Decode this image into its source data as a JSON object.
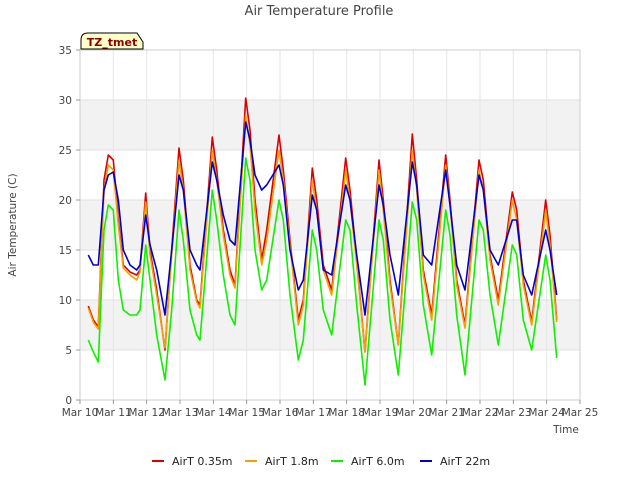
{
  "chart_data": {
    "type": "line",
    "title": "Air Temperature Profile",
    "xlabel": "Time",
    "ylabel": "Air Temperature (C)",
    "badge": "TZ_tmet",
    "ylim": [
      0,
      35
    ],
    "xlim": [
      10,
      25
    ],
    "yticks": [
      0,
      5,
      10,
      15,
      20,
      25,
      30,
      35
    ],
    "xticks": [
      {
        "v": 10,
        "label": "Mar 10"
      },
      {
        "v": 11,
        "label": "Mar 11"
      },
      {
        "v": 12,
        "label": "Mar 12"
      },
      {
        "v": 13,
        "label": "Mar 13"
      },
      {
        "v": 14,
        "label": "Mar 14"
      },
      {
        "v": 15,
        "label": "Mar 15"
      },
      {
        "v": 16,
        "label": "Mar 16"
      },
      {
        "v": 17,
        "label": "Mar 17"
      },
      {
        "v": 18,
        "label": "Mar 18"
      },
      {
        "v": 19,
        "label": "Mar 19"
      },
      {
        "v": 20,
        "label": "Mar 20"
      },
      {
        "v": 21,
        "label": "Mar 21"
      },
      {
        "v": 22,
        "label": "Mar 22"
      },
      {
        "v": 23,
        "label": "Mar 23"
      },
      {
        "v": 24,
        "label": "Mar 24"
      },
      {
        "v": 25,
        "label": "Mar 25"
      }
    ],
    "grid": "horizontal bands",
    "legend_position": "bottom",
    "x_units": "day of March",
    "series": [
      {
        "name": "AirT 0.35m",
        "color": "#dd0000",
        "points": [
          [
            10.25,
            9.4
          ],
          [
            10.4,
            8.0
          ],
          [
            10.55,
            7.3
          ],
          [
            10.72,
            22.0
          ],
          [
            10.85,
            24.5
          ],
          [
            11.0,
            24.0
          ],
          [
            11.15,
            18.0
          ],
          [
            11.3,
            13.5
          ],
          [
            11.5,
            12.8
          ],
          [
            11.7,
            12.5
          ],
          [
            11.8,
            13.0
          ],
          [
            11.97,
            20.7
          ],
          [
            12.1,
            15.0
          ],
          [
            12.3,
            11.0
          ],
          [
            12.55,
            5.0
          ],
          [
            12.75,
            15.0
          ],
          [
            12.97,
            25.2
          ],
          [
            13.1,
            22.0
          ],
          [
            13.3,
            13.5
          ],
          [
            13.5,
            10.0
          ],
          [
            13.6,
            9.5
          ],
          [
            13.97,
            26.3
          ],
          [
            14.1,
            23.0
          ],
          [
            14.3,
            17.0
          ],
          [
            14.5,
            13.0
          ],
          [
            14.65,
            11.5
          ],
          [
            14.97,
            30.2
          ],
          [
            15.1,
            27.0
          ],
          [
            15.25,
            20.0
          ],
          [
            15.45,
            14.0
          ],
          [
            15.6,
            17.0
          ],
          [
            15.97,
            26.5
          ],
          [
            16.1,
            23.0
          ],
          [
            16.3,
            16.0
          ],
          [
            16.55,
            8.0
          ],
          [
            16.7,
            10.0
          ],
          [
            16.97,
            23.2
          ],
          [
            17.1,
            20.0
          ],
          [
            17.3,
            13.5
          ],
          [
            17.55,
            11.0
          ],
          [
            17.97,
            24.2
          ],
          [
            18.1,
            21.0
          ],
          [
            18.3,
            14.0
          ],
          [
            18.55,
            4.8
          ],
          [
            18.97,
            24.0
          ],
          [
            19.1,
            20.0
          ],
          [
            19.3,
            12.0
          ],
          [
            19.55,
            5.5
          ],
          [
            19.97,
            26.6
          ],
          [
            20.1,
            22.0
          ],
          [
            20.3,
            13.0
          ],
          [
            20.55,
            8.5
          ],
          [
            20.97,
            24.5
          ],
          [
            21.1,
            20.0
          ],
          [
            21.3,
            12.0
          ],
          [
            21.55,
            7.5
          ],
          [
            21.97,
            24.0
          ],
          [
            22.1,
            22.0
          ],
          [
            22.3,
            14.5
          ],
          [
            22.55,
            10.0
          ],
          [
            22.97,
            20.8
          ],
          [
            23.1,
            19.0
          ],
          [
            23.3,
            12.0
          ],
          [
            23.55,
            7.8
          ],
          [
            23.97,
            20.0
          ],
          [
            24.1,
            16.5
          ],
          [
            24.3,
            8.0
          ]
        ]
      },
      {
        "name": "AirT 1.8m",
        "color": "#f0a000",
        "points": [
          [
            10.25,
            9.2
          ],
          [
            10.4,
            7.8
          ],
          [
            10.55,
            7.1
          ],
          [
            10.72,
            21.0
          ],
          [
            10.85,
            23.5
          ],
          [
            11.0,
            23.0
          ],
          [
            11.15,
            17.5
          ],
          [
            11.3,
            13.2
          ],
          [
            11.5,
            12.5
          ],
          [
            11.7,
            12.0
          ],
          [
            11.8,
            12.8
          ],
          [
            11.97,
            19.8
          ],
          [
            12.1,
            14.5
          ],
          [
            12.3,
            10.5
          ],
          [
            12.55,
            5.2
          ],
          [
            12.75,
            14.5
          ],
          [
            12.97,
            24.0
          ],
          [
            13.1,
            21.0
          ],
          [
            13.3,
            13.0
          ],
          [
            13.5,
            9.8
          ],
          [
            13.6,
            9.2
          ],
          [
            13.97,
            25.0
          ],
          [
            14.1,
            22.0
          ],
          [
            14.3,
            16.5
          ],
          [
            14.5,
            12.5
          ],
          [
            14.65,
            11.2
          ],
          [
            14.97,
            28.5
          ],
          [
            15.1,
            25.5
          ],
          [
            15.25,
            19.0
          ],
          [
            15.45,
            13.5
          ],
          [
            15.6,
            16.0
          ],
          [
            15.97,
            25.0
          ],
          [
            16.1,
            22.0
          ],
          [
            16.3,
            15.5
          ],
          [
            16.55,
            7.5
          ],
          [
            16.7,
            9.5
          ],
          [
            16.97,
            22.0
          ],
          [
            17.1,
            19.0
          ],
          [
            17.3,
            13.0
          ],
          [
            17.55,
            10.5
          ],
          [
            17.97,
            23.0
          ],
          [
            18.1,
            20.0
          ],
          [
            18.3,
            13.5
          ],
          [
            18.55,
            4.8
          ],
          [
            18.97,
            23.0
          ],
          [
            19.1,
            19.0
          ],
          [
            19.3,
            11.5
          ],
          [
            19.55,
            5.5
          ],
          [
            19.97,
            25.0
          ],
          [
            20.1,
            21.0
          ],
          [
            20.3,
            12.5
          ],
          [
            20.55,
            8.0
          ],
          [
            20.97,
            23.5
          ],
          [
            21.1,
            19.5
          ],
          [
            21.3,
            11.5
          ],
          [
            21.55,
            7.2
          ],
          [
            21.97,
            23.0
          ],
          [
            22.1,
            21.0
          ],
          [
            22.3,
            14.0
          ],
          [
            22.55,
            9.5
          ],
          [
            22.97,
            20.0
          ],
          [
            23.1,
            18.0
          ],
          [
            23.3,
            11.5
          ],
          [
            23.55,
            7.5
          ],
          [
            23.97,
            19.0
          ],
          [
            24.1,
            15.5
          ],
          [
            24.3,
            7.8
          ]
        ]
      },
      {
        "name": "AirT 6.0m",
        "color": "#11ee00",
        "points": [
          [
            10.25,
            6.0
          ],
          [
            10.4,
            4.8
          ],
          [
            10.55,
            3.8
          ],
          [
            10.72,
            17.0
          ],
          [
            10.85,
            19.5
          ],
          [
            11.0,
            19.0
          ],
          [
            11.15,
            12.0
          ],
          [
            11.3,
            9.0
          ],
          [
            11.5,
            8.5
          ],
          [
            11.7,
            8.5
          ],
          [
            11.8,
            9.0
          ],
          [
            11.97,
            15.5
          ],
          [
            12.1,
            12.0
          ],
          [
            12.3,
            6.5
          ],
          [
            12.55,
            2.0
          ],
          [
            12.75,
            9.0
          ],
          [
            12.97,
            19.0
          ],
          [
            13.1,
            16.0
          ],
          [
            13.3,
            9.0
          ],
          [
            13.5,
            6.5
          ],
          [
            13.6,
            6.0
          ],
          [
            13.97,
            21.0
          ],
          [
            14.1,
            18.0
          ],
          [
            14.3,
            12.5
          ],
          [
            14.5,
            8.5
          ],
          [
            14.65,
            7.5
          ],
          [
            14.97,
            24.2
          ],
          [
            15.1,
            22.0
          ],
          [
            15.25,
            15.0
          ],
          [
            15.45,
            11.0
          ],
          [
            15.6,
            12.0
          ],
          [
            15.97,
            20.0
          ],
          [
            16.1,
            18.0
          ],
          [
            16.3,
            10.5
          ],
          [
            16.55,
            4.0
          ],
          [
            16.7,
            6.0
          ],
          [
            16.97,
            17.0
          ],
          [
            17.1,
            15.0
          ],
          [
            17.3,
            9.0
          ],
          [
            17.55,
            6.5
          ],
          [
            17.97,
            18.0
          ],
          [
            18.1,
            17.0
          ],
          [
            18.3,
            9.5
          ],
          [
            18.55,
            1.5
          ],
          [
            18.97,
            18.0
          ],
          [
            19.1,
            16.0
          ],
          [
            19.3,
            8.0
          ],
          [
            19.55,
            2.5
          ],
          [
            19.97,
            19.8
          ],
          [
            20.1,
            18.0
          ],
          [
            20.3,
            9.5
          ],
          [
            20.55,
            4.5
          ],
          [
            20.97,
            19.0
          ],
          [
            21.1,
            16.5
          ],
          [
            21.3,
            8.5
          ],
          [
            21.55,
            2.5
          ],
          [
            21.97,
            18.0
          ],
          [
            22.1,
            17.0
          ],
          [
            22.3,
            10.5
          ],
          [
            22.55,
            5.5
          ],
          [
            22.97,
            15.5
          ],
          [
            23.1,
            14.5
          ],
          [
            23.3,
            8.0
          ],
          [
            23.55,
            5.0
          ],
          [
            23.97,
            14.5
          ],
          [
            24.1,
            12.0
          ],
          [
            24.3,
            4.2
          ]
        ]
      },
      {
        "name": "AirT 22m",
        "color": "#0000cc",
        "points": [
          [
            10.25,
            14.5
          ],
          [
            10.4,
            13.5
          ],
          [
            10.55,
            13.5
          ],
          [
            10.72,
            21.0
          ],
          [
            10.85,
            22.5
          ],
          [
            11.0,
            22.8
          ],
          [
            11.15,
            20.0
          ],
          [
            11.3,
            15.0
          ],
          [
            11.5,
            13.5
          ],
          [
            11.7,
            13.0
          ],
          [
            11.8,
            13.5
          ],
          [
            11.97,
            18.5
          ],
          [
            12.1,
            15.5
          ],
          [
            12.3,
            13.0
          ],
          [
            12.55,
            8.5
          ],
          [
            12.75,
            15.0
          ],
          [
            12.97,
            22.5
          ],
          [
            13.1,
            21.0
          ],
          [
            13.3,
            15.0
          ],
          [
            13.5,
            13.5
          ],
          [
            13.6,
            13.0
          ],
          [
            13.97,
            23.8
          ],
          [
            14.1,
            22.0
          ],
          [
            14.3,
            18.5
          ],
          [
            14.5,
            16.0
          ],
          [
            14.65,
            15.5
          ],
          [
            14.97,
            27.8
          ],
          [
            15.1,
            26.0
          ],
          [
            15.25,
            22.5
          ],
          [
            15.45,
            21.0
          ],
          [
            15.6,
            21.5
          ],
          [
            15.97,
            23.5
          ],
          [
            16.1,
            21.5
          ],
          [
            16.3,
            15.0
          ],
          [
            16.55,
            11.0
          ],
          [
            16.7,
            12.0
          ],
          [
            16.97,
            20.5
          ],
          [
            17.1,
            19.0
          ],
          [
            17.3,
            13.0
          ],
          [
            17.55,
            12.5
          ],
          [
            17.97,
            21.5
          ],
          [
            18.1,
            20.0
          ],
          [
            18.3,
            14.5
          ],
          [
            18.55,
            8.5
          ],
          [
            18.97,
            21.5
          ],
          [
            19.1,
            19.5
          ],
          [
            19.3,
            14.5
          ],
          [
            19.55,
            10.5
          ],
          [
            19.97,
            23.8
          ],
          [
            20.1,
            21.5
          ],
          [
            20.3,
            14.5
          ],
          [
            20.55,
            13.5
          ],
          [
            20.97,
            23.0
          ],
          [
            21.1,
            19.5
          ],
          [
            21.3,
            13.5
          ],
          [
            21.55,
            11.0
          ],
          [
            21.97,
            22.5
          ],
          [
            22.1,
            21.0
          ],
          [
            22.3,
            15.0
          ],
          [
            22.55,
            13.5
          ],
          [
            22.97,
            18.0
          ],
          [
            23.1,
            18.0
          ],
          [
            23.3,
            12.5
          ],
          [
            23.55,
            10.5
          ],
          [
            23.97,
            17.0
          ],
          [
            24.1,
            15.0
          ],
          [
            24.3,
            10.5
          ]
        ]
      }
    ]
  }
}
